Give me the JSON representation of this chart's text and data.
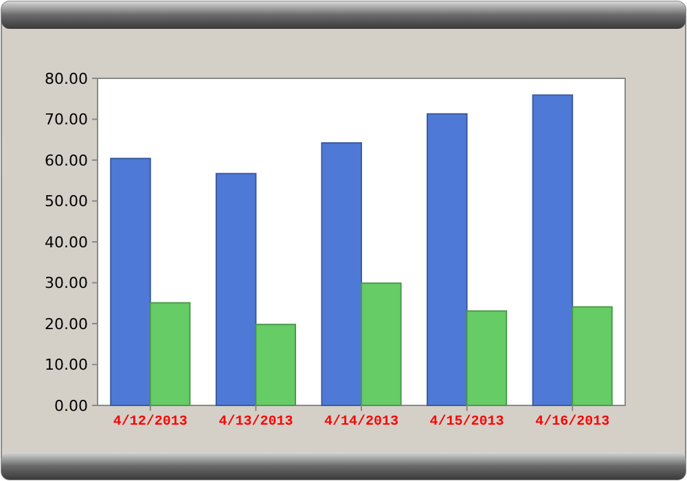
{
  "chart_data": {
    "type": "bar",
    "categories": [
      "4/12/2013",
      "4/13/2013",
      "4/14/2013",
      "4/15/2013",
      "4/16/2013"
    ],
    "series": [
      {
        "color": "#4f79d6",
        "values": [
          60.4,
          56.7,
          64.2,
          71.3,
          75.9
        ]
      },
      {
        "color": "#66cc66",
        "values": [
          25.1,
          19.8,
          29.9,
          23.1,
          24.1
        ]
      }
    ],
    "ylim": [
      0,
      80
    ],
    "yticks": [
      {
        "value": 0,
        "label": "0.00"
      },
      {
        "value": 10,
        "label": "10.00"
      },
      {
        "value": 20,
        "label": "20.00"
      },
      {
        "value": 30,
        "label": "30.00"
      },
      {
        "value": 40,
        "label": "40.00"
      },
      {
        "value": 50,
        "label": "50.00"
      },
      {
        "value": 60,
        "label": "60.00"
      },
      {
        "value": 70,
        "label": "70.00"
      },
      {
        "value": 80,
        "label": "80.00"
      }
    ],
    "grid": false
  }
}
